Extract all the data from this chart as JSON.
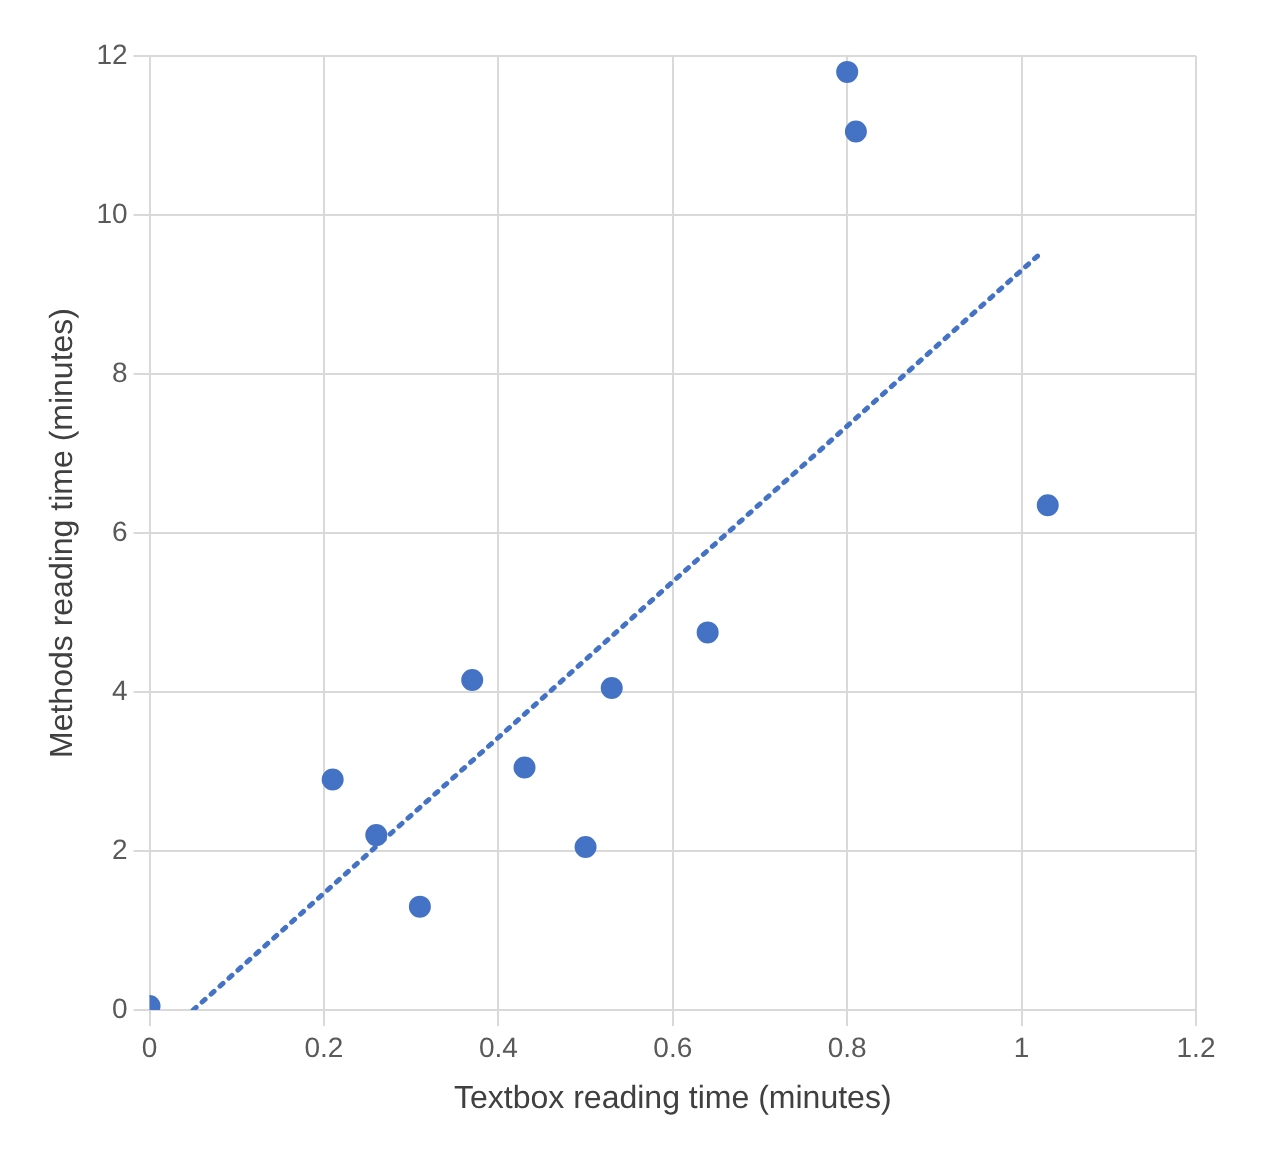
{
  "chart_data": {
    "type": "scatter",
    "xlabel": "Textbox reading time (minutes)",
    "ylabel": "Methods reading time (minutes)",
    "x": [
      0,
      0.21,
      0.26,
      0.31,
      0.37,
      0.43,
      0.5,
      0.53,
      0.64,
      0.8,
      0.81,
      1.03
    ],
    "series": [
      {
        "color": "#4472c4",
        "values": [
          0.05,
          2.9,
          2.2,
          1.3,
          4.15,
          3.05,
          2.05,
          4.05,
          4.75,
          11.8,
          11.05,
          6.35
        ],
        "marker": "circle"
      },
      {
        "type": "line",
        "color": "#4472c4",
        "x": [
          0.05,
          1.025
        ],
        "values": [
          0,
          9.55
        ],
        "line_style": "dotted",
        "marker": "none"
      }
    ],
    "xlim": [
      0,
      1.2
    ],
    "xticks": [
      0,
      0.2,
      0.4,
      0.6,
      0.8,
      1,
      1.2
    ],
    "ylim": [
      0,
      12
    ],
    "yticks": [
      0,
      2,
      4,
      6,
      8,
      10,
      12
    ],
    "grid": true,
    "legend": false
  }
}
